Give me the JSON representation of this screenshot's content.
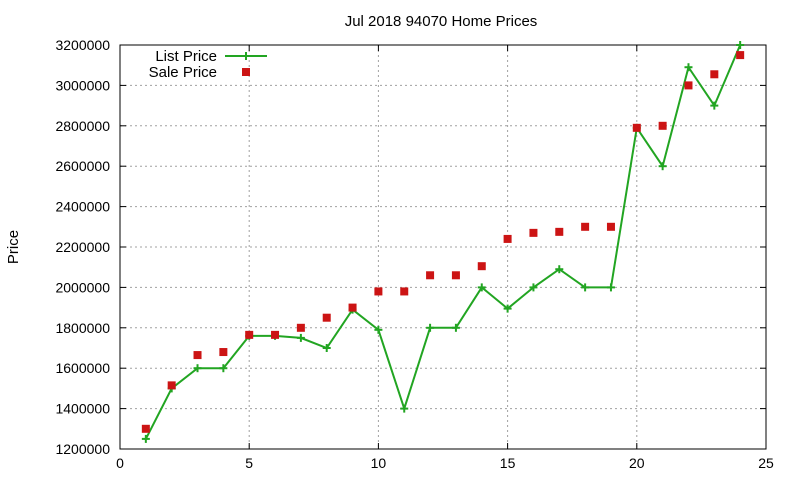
{
  "chart_data": {
    "type": "line",
    "title": "Jul 2018 94070 Home Prices",
    "xlabel": "",
    "ylabel": "Price",
    "xlim": [
      0,
      25
    ],
    "ylim": [
      1200000,
      3200000
    ],
    "xticks": [
      0,
      5,
      10,
      15,
      20,
      25
    ],
    "yticks": [
      1200000,
      1400000,
      1600000,
      1800000,
      2000000,
      2200000,
      2400000,
      2600000,
      2800000,
      3000000,
      3200000
    ],
    "grid": true,
    "legend_position": "top-left",
    "series": [
      {
        "name": "List Price",
        "style": "line-with-plus-markers",
        "color": "#22a522",
        "x": [
          1,
          2,
          3,
          4,
          5,
          6,
          7,
          8,
          9,
          10,
          11,
          12,
          13,
          14,
          15,
          16,
          17,
          18,
          19,
          20,
          21,
          22,
          23,
          24
        ],
        "y": [
          1250000,
          1500000,
          1600000,
          1600000,
          1760000,
          1760000,
          1750000,
          1700000,
          1890000,
          1790000,
          1400000,
          1800000,
          1800000,
          2000000,
          1895000,
          2000000,
          2090000,
          2000000,
          2000000,
          2790000,
          2600000,
          3090000,
          2900000,
          3200000
        ]
      },
      {
        "name": "Sale Price",
        "style": "square-markers",
        "color": "#cc1414",
        "x": [
          1,
          2,
          3,
          4,
          5,
          6,
          7,
          8,
          9,
          10,
          11,
          12,
          13,
          14,
          15,
          16,
          17,
          18,
          19,
          20,
          21,
          22,
          23,
          24
        ],
        "y": [
          1300000,
          1515000,
          1665000,
          1680000,
          1765000,
          1765000,
          1800000,
          1850000,
          1900000,
          1980000,
          1980000,
          2060000,
          2060000,
          2105000,
          2240000,
          2270000,
          2275000,
          2300000,
          2300000,
          2790000,
          2800000,
          3000000,
          3055000,
          3150000
        ]
      }
    ]
  }
}
